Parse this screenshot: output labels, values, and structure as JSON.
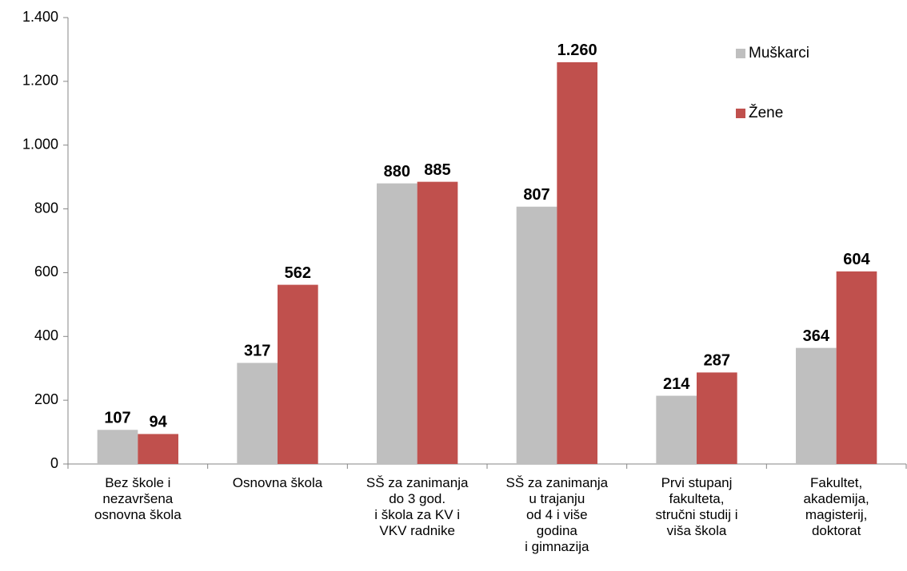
{
  "chart_data": {
    "type": "bar",
    "categories": [
      "Bez škole i\nnezavršena\nosnovna škola",
      "Osnovna škola",
      "SŠ za zanimanja\ndo 3 god.\ni škola za KV i\nVKV radnike",
      "SŠ za zanimanja\nu trajanju\nod 4 i više\ngodina\ni gimnazija",
      "Prvi stupanj\nfakulteta,\nstručni studij i\nviša škola",
      "Fakultet,\nakademija,\nmagisterij,\ndoktorat"
    ],
    "series": [
      {
        "name": "Muškarci",
        "color": "#bfbfbf",
        "values": [
          107,
          317,
          880,
          807,
          214,
          364
        ]
      },
      {
        "name": "Žene",
        "color": "#c0504d",
        "values": [
          94,
          562,
          885,
          1260,
          287,
          604
        ],
        "value_labels": [
          "94",
          "562",
          "885",
          "1.260",
          "287",
          "604"
        ]
      }
    ],
    "ylim": [
      0,
      1400
    ],
    "yticks": [
      0,
      200,
      400,
      600,
      800,
      {
        "value": 1000,
        "label": "1.000"
      },
      {
        "value": 1200,
        "label": "1.200"
      },
      {
        "value": 1400,
        "label": "1.400"
      }
    ],
    "grid": false,
    "legend": "upper right"
  }
}
